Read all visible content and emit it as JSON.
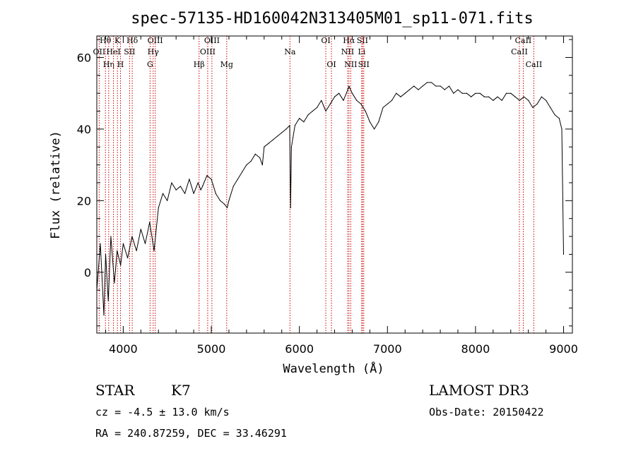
{
  "chart_data": {
    "type": "line",
    "title": "spec-57135-HD160042N313405M01_sp11-071.fits",
    "xlabel": "Wavelength (Å)",
    "ylabel": "Flux (relative)",
    "xlim": [
      3700,
      9100
    ],
    "ylim": [
      -17,
      66
    ],
    "xticks": [
      4000,
      5000,
      6000,
      7000,
      8000,
      9000
    ],
    "xtick_labels": [
      "4000",
      "5000",
      "6000",
      "7000",
      "8000",
      "9000"
    ],
    "yticks": [
      0,
      20,
      40,
      60
    ],
    "ytick_labels": [
      "0",
      "20",
      "40",
      "60"
    ],
    "grid": false,
    "series": [
      {
        "name": "spectrum",
        "x": [
          3700,
          3740,
          3780,
          3800,
          3830,
          3860,
          3900,
          3930,
          3970,
          4000,
          4050,
          4100,
          4150,
          4200,
          4250,
          4300,
          4350,
          4400,
          4450,
          4500,
          4550,
          4600,
          4650,
          4700,
          4750,
          4800,
          4850,
          4880,
          4900,
          4950,
          5000,
          5050,
          5100,
          5150,
          5180,
          5200,
          5250,
          5300,
          5350,
          5400,
          5450,
          5500,
          5550,
          5580,
          5600,
          5650,
          5700,
          5750,
          5800,
          5850,
          5890,
          5900,
          5910,
          5950,
          6000,
          6050,
          6100,
          6150,
          6200,
          6250,
          6300,
          6350,
          6400,
          6450,
          6500,
          6550,
          6563,
          6600,
          6650,
          6700,
          6750,
          6800,
          6850,
          6900,
          6950,
          7000,
          7050,
          7100,
          7150,
          7200,
          7250,
          7300,
          7350,
          7400,
          7450,
          7500,
          7550,
          7600,
          7650,
          7700,
          7750,
          7800,
          7850,
          7900,
          7950,
          8000,
          8050,
          8100,
          8150,
          8200,
          8250,
          8300,
          8350,
          8400,
          8450,
          8500,
          8550,
          8600,
          8650,
          8700,
          8750,
          8800,
          8850,
          8900,
          8950,
          8980,
          9000
        ],
        "y": [
          -5,
          8,
          -12,
          5,
          -8,
          10,
          -3,
          6,
          2,
          8,
          4,
          10,
          6,
          12,
          8,
          14,
          6,
          18,
          22,
          20,
          25,
          23,
          24,
          22,
          26,
          22,
          25,
          23,
          24,
          27,
          26,
          22,
          20,
          19,
          18,
          20,
          24,
          26,
          28,
          30,
          31,
          33,
          32,
          30,
          35,
          36,
          37,
          38,
          39,
          40,
          41,
          18,
          35,
          41,
          43,
          42,
          44,
          45,
          46,
          48,
          45,
          47,
          49,
          50,
          48,
          51,
          52,
          50,
          48,
          47,
          45,
          42,
          40,
          42,
          46,
          47,
          48,
          50,
          49,
          50,
          51,
          52,
          51,
          52,
          53,
          53,
          52,
          52,
          51,
          52,
          50,
          51,
          50,
          50,
          49,
          50,
          50,
          49,
          49,
          48,
          49,
          48,
          50,
          50,
          49,
          48,
          49,
          48,
          46,
          47,
          49,
          48,
          46,
          44,
          43,
          40,
          5
        ]
      }
    ],
    "line_markers": [
      {
        "label": "Hθ",
        "x": 3798,
        "row": 1
      },
      {
        "label": "OII",
        "x": 3727,
        "row": 2
      },
      {
        "label": "Hη",
        "x": 3835,
        "row": 3
      },
      {
        "label": "K",
        "x": 3934,
        "row": 1
      },
      {
        "label": "HeI",
        "x": 3889,
        "row": 2
      },
      {
        "label": "SII",
        "x": 4072,
        "row": 2
      },
      {
        "label": "H",
        "x": 3969,
        "row": 3
      },
      {
        "label": "Hδ",
        "x": 4102,
        "row": 1
      },
      {
        "label": "OIII",
        "x": 4363,
        "row": 1
      },
      {
        "label": "Hγ",
        "x": 4340,
        "row": 2
      },
      {
        "label": "G",
        "x": 4305,
        "row": 3
      },
      {
        "label": "OIII",
        "x": 5007,
        "row": 1
      },
      {
        "label": "OIII",
        "x": 4959,
        "row": 2
      },
      {
        "label": "Hβ",
        "x": 4861,
        "row": 3
      },
      {
        "label": "Mg",
        "x": 5175,
        "row": 3
      },
      {
        "label": "Na",
        "x": 5893,
        "row": 2
      },
      {
        "label": "OI",
        "x": 6300,
        "row": 1
      },
      {
        "label": "OI",
        "x": 6364,
        "row": 3
      },
      {
        "label": "Hα",
        "x": 6563,
        "row": 1
      },
      {
        "label": "SII",
        "x": 6716,
        "row": 1
      },
      {
        "label": "NII",
        "x": 6548,
        "row": 2
      },
      {
        "label": "Li",
        "x": 6708,
        "row": 2
      },
      {
        "label": "NII",
        "x": 6583,
        "row": 3
      },
      {
        "label": "SII",
        "x": 6731,
        "row": 3
      },
      {
        "label": "CaII",
        "x": 8542,
        "row": 1
      },
      {
        "label": "CaII",
        "x": 8498,
        "row": 2
      },
      {
        "label": "CaII",
        "x": 8662,
        "row": 3
      }
    ]
  },
  "footer": {
    "object_class": "STAR",
    "subclass": "K7",
    "survey": "LAMOST DR3",
    "velocity": "cz = -4.5 ± 13.0 km/s",
    "obs_date": "Obs-Date: 20150422",
    "coords": "RA = 240.87259, DEC =  33.46291"
  },
  "colors": {
    "spectrum": "#000000",
    "marker_line": "#cc0000",
    "axis": "#000000"
  }
}
